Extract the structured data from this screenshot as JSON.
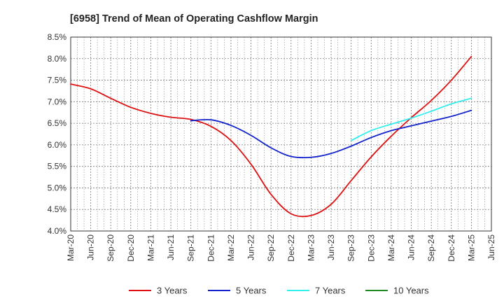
{
  "chart_data": {
    "type": "line",
    "title": "[6958]  Trend of Mean of Operating Cashflow Margin",
    "xlabel": "",
    "ylabel": "",
    "ylim": [
      4.0,
      8.5
    ],
    "y_ticks": [
      "4.0%",
      "4.5%",
      "5.0%",
      "5.5%",
      "6.0%",
      "6.5%",
      "7.0%",
      "7.5%",
      "8.0%",
      "8.5%"
    ],
    "y_tick_values": [
      4.0,
      4.5,
      5.0,
      5.5,
      6.0,
      6.5,
      7.0,
      7.5,
      8.0,
      8.5
    ],
    "categories": [
      "Mar-20",
      "Jun-20",
      "Sep-20",
      "Dec-20",
      "Mar-21",
      "Jun-21",
      "Sep-21",
      "Dec-21",
      "Mar-22",
      "Jun-22",
      "Sep-22",
      "Dec-22",
      "Mar-23",
      "Jun-23",
      "Sep-23",
      "Dec-23",
      "Mar-24",
      "Jun-24",
      "Sep-24",
      "Dec-24",
      "Mar-25",
      "Jun-25"
    ],
    "grid": true,
    "legend_position": "bottom",
    "series": [
      {
        "name": "3 Years",
        "color": "#dd1111",
        "values": [
          7.41,
          7.3,
          7.08,
          6.87,
          6.73,
          6.64,
          6.59,
          6.43,
          6.1,
          5.55,
          4.85,
          4.4,
          4.36,
          4.62,
          5.17,
          5.72,
          6.2,
          6.63,
          7.03,
          7.5,
          8.05,
          null
        ]
      },
      {
        "name": "5 Years",
        "color": "#1122cc",
        "values": [
          null,
          null,
          null,
          null,
          null,
          null,
          6.56,
          6.58,
          6.45,
          6.22,
          5.93,
          5.73,
          5.71,
          5.8,
          5.97,
          6.17,
          6.33,
          6.44,
          6.55,
          6.66,
          6.8,
          null
        ]
      },
      {
        "name": "7 Years",
        "color": "#33eeee",
        "values": [
          null,
          null,
          null,
          null,
          null,
          null,
          null,
          null,
          null,
          null,
          null,
          null,
          null,
          null,
          6.1,
          6.33,
          6.48,
          6.62,
          6.78,
          6.95,
          7.08,
          null
        ]
      },
      {
        "name": "10 Years",
        "color": "#228822",
        "values": [
          null,
          null,
          null,
          null,
          null,
          null,
          null,
          null,
          null,
          null,
          null,
          null,
          null,
          null,
          null,
          null,
          null,
          null,
          null,
          null,
          null,
          null
        ]
      }
    ]
  }
}
